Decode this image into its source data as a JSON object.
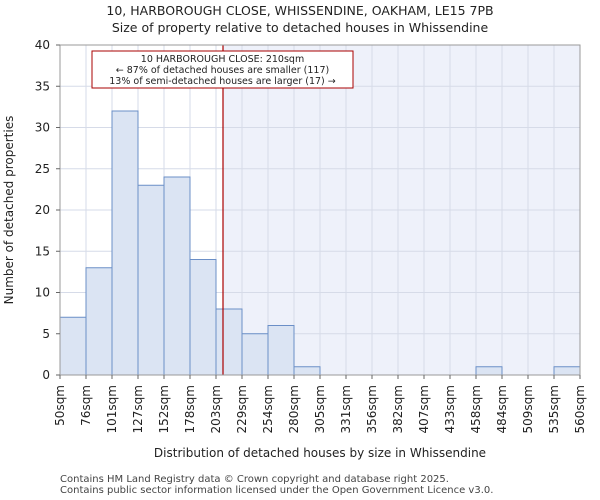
{
  "title_lines": [
    "10, HARBOROUGH CLOSE, WHISSENDINE, OAKHAM, LE15 7PB",
    "Size of property relative to detached houses in Whissendine"
  ],
  "footer_lines": [
    "Contains HM Land Registry data © Crown copyright and database right 2025.",
    "Contains public sector information licensed under the Open Government Licence v3.0."
  ],
  "chart_data": {
    "type": "bar",
    "xlabel": "Distribution of detached houses by size in Whissendine",
    "ylabel": "Number of detached properties",
    "ylim": [
      0,
      40
    ],
    "yticks": [
      0,
      5,
      10,
      15,
      20,
      25,
      30,
      35,
      40
    ],
    "bin_edges": [
      "50sqm",
      "76sqm",
      "101sqm",
      "127sqm",
      "152sqm",
      "178sqm",
      "203sqm",
      "229sqm",
      "254sqm",
      "280sqm",
      "305sqm",
      "331sqm",
      "356sqm",
      "382sqm",
      "407sqm",
      "433sqm",
      "458sqm",
      "484sqm",
      "509sqm",
      "535sqm",
      "560sqm"
    ],
    "values": [
      7,
      13,
      32,
      23,
      24,
      14,
      8,
      5,
      6,
      1,
      0,
      0,
      0,
      0,
      0,
      0,
      1,
      0,
      0,
      1
    ],
    "marker": {
      "value_sqm": 210,
      "label_lines": [
        "10 HARBOROUGH CLOSE: 210sqm",
        "← 87% of detached houses are smaller (117)",
        "13% of semi-detached houses are larger (17) →"
      ],
      "color": "#aa0000"
    },
    "grid": true,
    "colors": {
      "bar_fill": "#dbe4f3",
      "bar_stroke": "#6b8fc7",
      "plot_bg_right": "#eef1fa",
      "grid": "#d6dbe8"
    }
  }
}
